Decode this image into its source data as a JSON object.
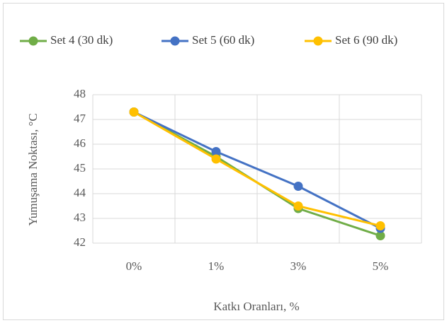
{
  "chart_data": {
    "type": "line",
    "categories": [
      "0%",
      "1%",
      "3%",
      "5%"
    ],
    "series": [
      {
        "name": "Set 4 (30 dk)",
        "color": "#70ad47",
        "values": [
          47.3,
          45.5,
          43.4,
          42.3
        ]
      },
      {
        "name": "Set 5 (60 dk)",
        "color": "#4472c4",
        "values": [
          47.3,
          45.7,
          44.3,
          42.6
        ]
      },
      {
        "name": "Set 6 (90 dk)",
        "color": "#ffc000",
        "values": [
          47.3,
          45.4,
          43.5,
          42.7
        ]
      }
    ],
    "xlabel": "Katkı Oranları, %",
    "ylabel": "Yumuşama Noktası, °C",
    "ylim": [
      42,
      48
    ],
    "yticks": [
      42,
      43,
      44,
      45,
      46,
      47,
      48
    ],
    "grid": true,
    "legend": "top"
  }
}
